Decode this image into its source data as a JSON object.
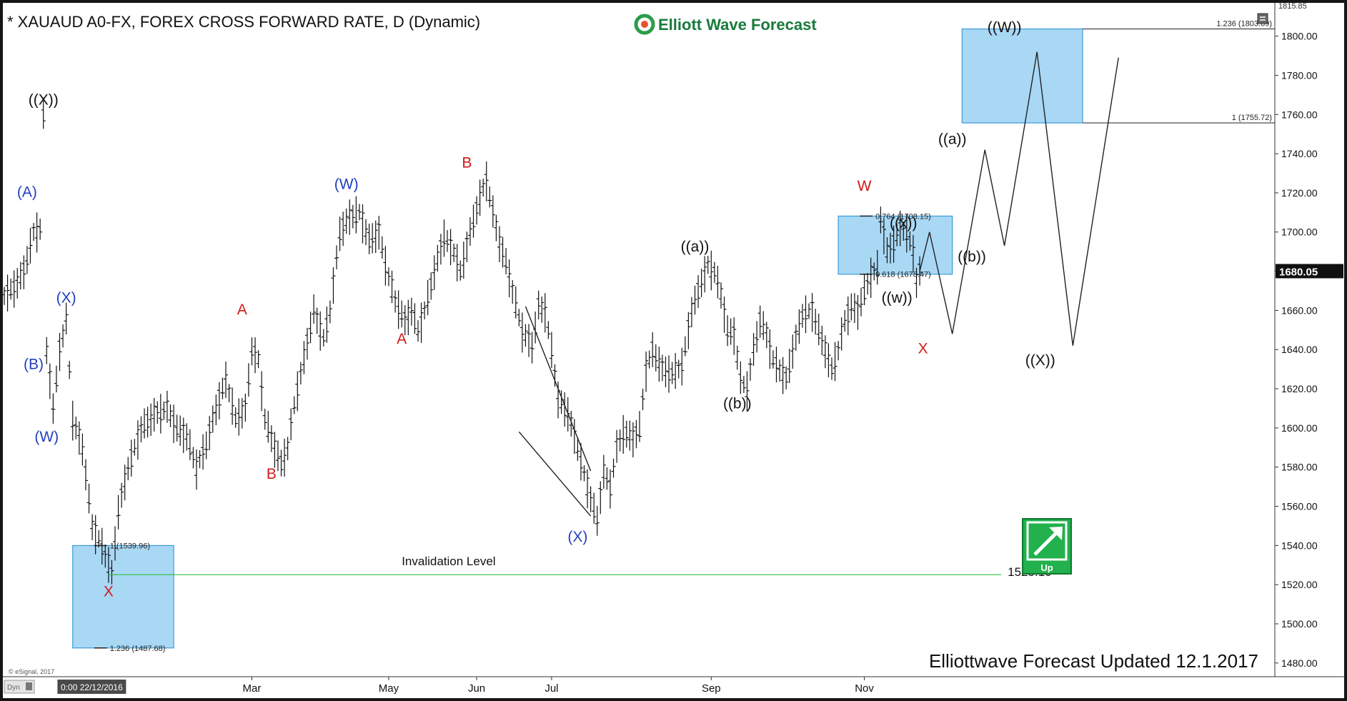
{
  "header": {
    "title": "* XAUAUD A0-FX, FOREX CROSS FORWARD RATE, D (Dynamic)",
    "brand": "Elliott Wave Forecast",
    "updated": "Elliottwave Forecast Updated 12.1.2017",
    "credit": "© eSignal, 2017",
    "corner_label": "Dyn",
    "badge_label": "Up",
    "brand_color": "#1a7a3c",
    "badge_color": "#22b14c",
    "up_icon": "arrow-up-right-icon"
  },
  "chart_data": {
    "type": "ohlc",
    "ylim": [
      1473,
      1817
    ],
    "y_ticks": [
      1480,
      1500,
      1520,
      1540,
      1560,
      1580,
      1600,
      1620,
      1640,
      1660,
      1680,
      1700,
      1720,
      1740,
      1760,
      1780,
      1800
    ],
    "y_tick_labels": [
      "1480.00",
      "1500.00",
      "1520.00",
      "1540.00",
      "1560.00",
      "1580.00",
      "1600.00",
      "1620.00",
      "1640.00",
      "1660.00",
      "1680.00",
      "1700.00",
      "1720.00",
      "1740.00",
      "1760.00",
      "1780.00",
      "1800.00"
    ],
    "top_label": "1815.85",
    "last_price": 1680.05,
    "last_price_label": "1680.05",
    "x_range": [
      0,
      390
    ],
    "x_labels": [
      {
        "x": 24,
        "label": "0:00 22/12/2016",
        "cursor": true
      },
      {
        "x": 76,
        "label": "Mar"
      },
      {
        "x": 118,
        "label": "May"
      },
      {
        "x": 145,
        "label": "Jun"
      },
      {
        "x": 168,
        "label": "Jul"
      },
      {
        "x": 217,
        "label": "Sep"
      },
      {
        "x": 264,
        "label": "Nov"
      }
    ],
    "price_path": [
      [
        0,
        1668
      ],
      [
        3,
        1672
      ],
      [
        6,
        1680
      ],
      [
        9,
        1700
      ],
      [
        11,
        1702
      ],
      [
        12,
        1760
      ],
      [
        13,
        1640
      ],
      [
        15,
        1610
      ],
      [
        17,
        1640
      ],
      [
        19,
        1655
      ],
      [
        21,
        1605
      ],
      [
        24,
        1590
      ],
      [
        27,
        1550
      ],
      [
        30,
        1540
      ],
      [
        33,
        1526
      ],
      [
        35,
        1558
      ],
      [
        38,
        1580
      ],
      [
        42,
        1600
      ],
      [
        46,
        1607
      ],
      [
        50,
        1610
      ],
      [
        53,
        1600
      ],
      [
        56,
        1596
      ],
      [
        59,
        1580
      ],
      [
        62,
        1592
      ],
      [
        65,
        1610
      ],
      [
        68,
        1625
      ],
      [
        71,
        1605
      ],
      [
        74,
        1610
      ],
      [
        76,
        1640
      ],
      [
        78,
        1635
      ],
      [
        80,
        1605
      ],
      [
        83,
        1590
      ],
      [
        85,
        1582
      ],
      [
        87,
        1590
      ],
      [
        89,
        1612
      ],
      [
        92,
        1636
      ],
      [
        95,
        1660
      ],
      [
        98,
        1646
      ],
      [
        100,
        1660
      ],
      [
        103,
        1700
      ],
      [
        106,
        1708
      ],
      [
        109,
        1710
      ],
      [
        112,
        1696
      ],
      [
        115,
        1700
      ],
      [
        117,
        1684
      ],
      [
        120,
        1665
      ],
      [
        123,
        1655
      ],
      [
        125,
        1660
      ],
      [
        127,
        1650
      ],
      [
        129,
        1660
      ],
      [
        132,
        1680
      ],
      [
        135,
        1698
      ],
      [
        138,
        1690
      ],
      [
        140,
        1680
      ],
      [
        143,
        1700
      ],
      [
        146,
        1718
      ],
      [
        148,
        1727
      ],
      [
        150,
        1710
      ],
      [
        152,
        1695
      ],
      [
        154,
        1685
      ],
      [
        156,
        1670
      ],
      [
        159,
        1650
      ],
      [
        162,
        1642
      ],
      [
        164,
        1662
      ],
      [
        166,
        1660
      ],
      [
        168,
        1640
      ],
      [
        170,
        1615
      ],
      [
        173,
        1608
      ],
      [
        176,
        1590
      ],
      [
        179,
        1570
      ],
      [
        182,
        1553
      ],
      [
        184,
        1578
      ],
      [
        186,
        1570
      ],
      [
        188,
        1590
      ],
      [
        190,
        1598
      ],
      [
        193,
        1595
      ],
      [
        195,
        1600
      ],
      [
        197,
        1630
      ],
      [
        199,
        1640
      ],
      [
        202,
        1630
      ],
      [
        205,
        1628
      ],
      [
        208,
        1632
      ],
      [
        211,
        1660
      ],
      [
        214,
        1675
      ],
      [
        216,
        1683
      ],
      [
        218,
        1680
      ],
      [
        220,
        1668
      ],
      [
        222,
        1650
      ],
      [
        224,
        1648
      ],
      [
        226,
        1625
      ],
      [
        228,
        1620
      ],
      [
        230,
        1640
      ],
      [
        232,
        1655
      ],
      [
        234,
        1648
      ],
      [
        236,
        1635
      ],
      [
        238,
        1630
      ],
      [
        240,
        1625
      ],
      [
        242,
        1640
      ],
      [
        245,
        1658
      ],
      [
        248,
        1660
      ],
      [
        250,
        1650
      ],
      [
        252,
        1640
      ],
      [
        254,
        1630
      ],
      [
        256,
        1640
      ],
      [
        258,
        1655
      ],
      [
        260,
        1662
      ],
      [
        262,
        1660
      ],
      [
        264,
        1670
      ],
      [
        266,
        1678
      ],
      [
        268,
        1682
      ],
      [
        269,
        1707
      ],
      [
        271,
        1690
      ],
      [
        273,
        1695
      ],
      [
        275,
        1702
      ],
      [
        277,
        1700
      ],
      [
        279,
        1690
      ],
      [
        280,
        1675
      ],
      [
        281,
        1680
      ]
    ],
    "projection": [
      [
        281,
        1680
      ],
      [
        284,
        1700
      ],
      [
        291,
        1648
      ],
      [
        301,
        1742
      ],
      [
        307,
        1693
      ],
      [
        317,
        1792
      ],
      [
        328,
        1642
      ],
      [
        342,
        1789
      ]
    ],
    "triangle_lines": [
      [
        [
          160,
          1662
        ],
        [
          180,
          1578
        ]
      ],
      [
        [
          158,
          1598
        ],
        [
          180,
          1555
        ]
      ]
    ],
    "invalidation": {
      "value": 1525.1,
      "label": "Invalidation Level",
      "value_label": "1525.10",
      "color": "#2bbf3a"
    },
    "boxes": [
      {
        "x0": 21,
        "x1": 52,
        "y0": 1487.68,
        "y1": 1539.96,
        "labels": [
          {
            "text": "1 (1539.96)",
            "y": 1539.96
          },
          {
            "text": "1.236 (1487.68)",
            "y": 1487.68
          }
        ]
      },
      {
        "x0": 256,
        "x1": 291,
        "y0": 1678.47,
        "y1": 1708.15,
        "labels": [
          {
            "text": "0.764 (1708.15)",
            "y": 1708.15
          },
          {
            "text": "0.618 (1678.47)",
            "y": 1678.47
          }
        ]
      },
      {
        "x0": 294,
        "x1": 331,
        "y0": 1755.72,
        "y1": 1803.69,
        "labels": []
      }
    ],
    "right_levels": [
      {
        "text": "1.236 (1803.69)",
        "y": 1803.69,
        "x0": 331
      },
      {
        "text": "1 (1755.72)",
        "y": 1755.72,
        "x0": 331
      }
    ],
    "annotations": [
      {
        "text": "((X))",
        "x": 12,
        "y": 1765,
        "color": "#111111"
      },
      {
        "text": "(A)",
        "x": 7,
        "y": 1718,
        "color": "#1f3fbf"
      },
      {
        "text": "(X)",
        "x": 19,
        "y": 1664,
        "color": "#1f3fbf"
      },
      {
        "text": "(B)",
        "x": 9,
        "y": 1630,
        "color": "#1f3fbf"
      },
      {
        "text": "(W)",
        "x": 13,
        "y": 1593,
        "color": "#1f3fbf"
      },
      {
        "text": "X",
        "x": 32,
        "y": 1514,
        "color": "#d11a1a"
      },
      {
        "text": "A",
        "x": 73,
        "y": 1658,
        "color": "#d11a1a"
      },
      {
        "text": "B",
        "x": 82,
        "y": 1574,
        "color": "#d11a1a"
      },
      {
        "text": "(W)",
        "x": 105,
        "y": 1722,
        "color": "#1f3fbf"
      },
      {
        "text": "A",
        "x": 122,
        "y": 1643,
        "color": "#d11a1a"
      },
      {
        "text": "B",
        "x": 142,
        "y": 1733,
        "color": "#d11a1a"
      },
      {
        "text": "(X)",
        "x": 176,
        "y": 1542,
        "color": "#1f3fbf"
      },
      {
        "text": "((a))",
        "x": 212,
        "y": 1690,
        "color": "#111111"
      },
      {
        "text": "((b))",
        "x": 225,
        "y": 1610,
        "color": "#111111"
      },
      {
        "text": "W",
        "x": 264,
        "y": 1721,
        "color": "#d11a1a"
      },
      {
        "text": "((x))",
        "x": 276,
        "y": 1702,
        "color": "#111111"
      },
      {
        "text": "((w))",
        "x": 274,
        "y": 1664,
        "color": "#111111"
      },
      {
        "text": "X",
        "x": 282,
        "y": 1638,
        "color": "#d11a1a"
      },
      {
        "text": "((a))",
        "x": 291,
        "y": 1745,
        "color": "#111111"
      },
      {
        "text": "((b))",
        "x": 297,
        "y": 1685,
        "color": "#111111"
      },
      {
        "text": "((W))",
        "x": 307,
        "y": 1802,
        "color": "#111111"
      },
      {
        "text": "((X))",
        "x": 318,
        "y": 1632,
        "color": "#111111"
      }
    ]
  }
}
